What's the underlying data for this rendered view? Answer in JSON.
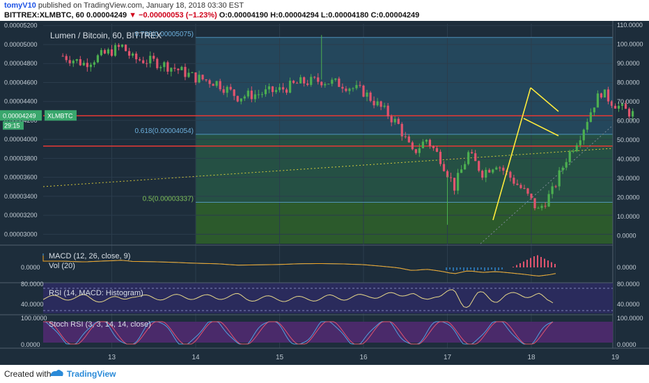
{
  "header": {
    "author": "tomyV10",
    "published": "published on TradingView.com, January 18, 2018 03:30 EST",
    "symbol": "BITTREX:XLMBTC, 60",
    "price": "0.00004249",
    "change": "▼ −0.00000053 (−1.23%)",
    "open": "O:0.00004190",
    "high": "H:0.00004294",
    "low": "L:0.00004180",
    "close": "C:0.00004249"
  },
  "legend": {
    "title": "Lumen / Bitcoin, 60, BITTREX",
    "macd": "MACD (12, 26, close, 9)",
    "vol": "Vol (20)",
    "rsi": "RSI (14, MACD: Histogram)",
    "stoch": "Stoch RSI (3, 3, 14, 14, close)"
  },
  "price_tag": {
    "value": "0.00004249",
    "label": "XLMBTC",
    "countdown": "29:15"
  },
  "footer": {
    "created": "Created with",
    "brand": "TradingView"
  },
  "colors": {
    "up": "#4caf50",
    "down": "#e0546e",
    "fib": "#5aa6d8",
    "support": "#e53935",
    "trend": "#ffeb3b"
  },
  "chart_data": {
    "type": "candlestick",
    "title": "Lumen / Bitcoin, 60, BITTREX",
    "x_ticks": [
      "13",
      "14",
      "15",
      "16",
      "17",
      "18",
      "19"
    ],
    "y_ticks_left": [
      "0.00005200",
      "0.00005000",
      "0.00004800",
      "0.00004600",
      "0.00004400",
      "0.00004200",
      "0.00004000",
      "0.00003800",
      "0.00003600",
      "0.00003400",
      "0.00003200",
      "0.00003000"
    ],
    "y_ticks_right": [
      "110.0000",
      "100.0000",
      "90.0000",
      "80.0000",
      "70.0000",
      "60.0000",
      "50.0000",
      "40.0000",
      "30.0000",
      "20.0000",
      "10.0000",
      "0.0000"
    ],
    "y_range": [
      2.9e-05,
      5.22e-05
    ],
    "fib_levels": [
      {
        "label": "0.786(0.00005075)",
        "value": 5.075e-05
      },
      {
        "label": "0.618(0.00004054)",
        "value": 4.054e-05
      },
      {
        "label": "0.5(0.00003337)",
        "value": 3.337e-05
      }
    ],
    "support_levels": [
      4.249e-05,
      3.93e-05
    ],
    "price_path": [
      [
        "2018-01-12T10:00",
        4.88e-05
      ],
      [
        "2018-01-12T16:00",
        4.8e-05
      ],
      [
        "2018-01-12T22:00",
        4.9e-05
      ],
      [
        "2018-01-13T03:00",
        4.98e-05
      ],
      [
        "2018-01-13T06:00",
        4.85e-05
      ],
      [
        "2018-01-13T12:00",
        4.82e-05
      ],
      [
        "2018-01-13T18:00",
        4.75e-05
      ],
      [
        "2018-01-14T00:00",
        4.65e-05
      ],
      [
        "2018-01-14T06:00",
        4.6e-05
      ],
      [
        "2018-01-14T12:00",
        4.45e-05
      ],
      [
        "2018-01-14T18:00",
        4.48e-05
      ],
      [
        "2018-01-15T00:00",
        4.52e-05
      ],
      [
        "2018-01-15T06:00",
        4.6e-05
      ],
      [
        "2018-01-15T12:00",
        4.62e-05
      ],
      [
        "2018-01-15T18:00",
        4.58e-05
      ],
      [
        "2018-01-16T00:00",
        4.5e-05
      ],
      [
        "2018-01-16T06:00",
        4.3e-05
      ],
      [
        "2018-01-16T10:00",
        4.15e-05
      ],
      [
        "2018-01-16T14:00",
        3.85e-05
      ],
      [
        "2018-01-16T18:00",
        4e-05
      ],
      [
        "2018-01-16T22:00",
        3.8e-05
      ],
      [
        "2018-01-17T02:00",
        3.5e-05
      ],
      [
        "2018-01-17T06:00",
        3.85e-05
      ],
      [
        "2018-01-17T10:00",
        3.65e-05
      ],
      [
        "2018-01-17T14:00",
        3.75e-05
      ],
      [
        "2018-01-17T18:00",
        3.6e-05
      ],
      [
        "2018-01-17T22:00",
        3.45e-05
      ],
      [
        "2018-01-18T02:00",
        3.25e-05
      ],
      [
        "2018-01-18T06:00",
        3.45e-05
      ],
      [
        "2018-01-18T10:00",
        3.8e-05
      ],
      [
        "2018-01-18T14:00",
        4.05e-05
      ],
      [
        "2018-01-18T18:00",
        4.38e-05
      ],
      [
        "2018-01-18T20:00",
        4.5e-05
      ],
      [
        "2018-01-18T23:00",
        4.4e-05
      ],
      [
        "2018-01-19T02:00",
        4.32e-05
      ],
      [
        "2018-01-19T06:00",
        4.25e-05
      ]
    ],
    "indicators": {
      "macd": {
        "label": "MACD (12, 26, close, 9)",
        "y_ticks": [
          "0.0000"
        ]
      },
      "rsi": {
        "label": "RSI (14, MACD: Histogram)",
        "y_ticks": [
          "80.0000",
          "40.0000"
        ]
      },
      "stoch_rsi": {
        "label": "Stoch RSI (3, 3, 14, 14, close)",
        "y_ticks": [
          "100.0000",
          "0.0000"
        ]
      }
    },
    "grid": true
  }
}
